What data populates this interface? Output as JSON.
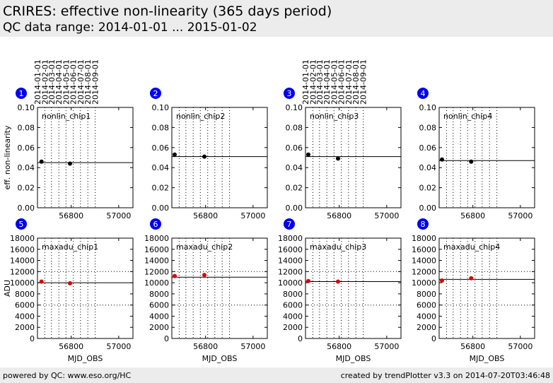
{
  "header": {
    "title": "CRIRES: effective non-linearity (365 days period)",
    "subtitle": "QC data range: 2014-01-01 ... 2015-01-02"
  },
  "footer": {
    "left": "powered by QC: www.eso.org/HC",
    "right": "created by trendPlotter v3.3 on 2014-07-20T03:46:48"
  },
  "date_labels": [
    "2014-01-01",
    "2014-02-01",
    "2014-03-01",
    "2014-04-01",
    "2014-05-01",
    "2014-06-01",
    "2014-07-01",
    "2014-08-01",
    "2014-09-01"
  ],
  "date_mjd": [
    56658,
    56689,
    56717,
    56748,
    56778,
    56809,
    56839,
    56870,
    56901
  ],
  "colors": {
    "badge": "#0000ee",
    "nonlin_points": "#000000",
    "maxadu_points": "#dd0000",
    "line": "#000000"
  },
  "chart_data": [
    {
      "type": "scatter",
      "panel_no": "1",
      "label": "nonlin_chip1",
      "ylabel": "eff. non-linearity",
      "xlabel": "",
      "xlim": [
        56658,
        57060
      ],
      "ylim": [
        0,
        0.1
      ],
      "yticks": [
        "0.00",
        "0.02",
        "0.04",
        "0.06",
        "0.08",
        "0.10"
      ],
      "xticks": [
        "56800",
        "57000"
      ],
      "points": [
        {
          "x": 56675,
          "y": 0.046
        },
        {
          "x": 56795,
          "y": 0.044
        }
      ],
      "ref_line": 0.045,
      "hlines": []
    },
    {
      "type": "scatter",
      "panel_no": "2",
      "label": "nonlin_chip2",
      "ylabel": "",
      "xlabel": "",
      "xlim": [
        56658,
        57060
      ],
      "ylim": [
        0,
        0.1
      ],
      "yticks": [
        "0.00",
        "0.02",
        "0.04",
        "0.06",
        "0.08",
        "0.10"
      ],
      "xticks": [
        "56800",
        "57000"
      ],
      "points": [
        {
          "x": 56670,
          "y": 0.053
        },
        {
          "x": 56795,
          "y": 0.051
        }
      ],
      "ref_line": 0.051,
      "hlines": []
    },
    {
      "type": "scatter",
      "panel_no": "3",
      "label": "nonlin_chip3",
      "ylabel": "",
      "xlabel": "",
      "xlim": [
        56658,
        57060
      ],
      "ylim": [
        0,
        0.1
      ],
      "yticks": [
        "0.00",
        "0.02",
        "0.04",
        "0.06",
        "0.08",
        "0.10"
      ],
      "xticks": [
        "56800",
        "57000"
      ],
      "points": [
        {
          "x": 56670,
          "y": 0.053
        },
        {
          "x": 56795,
          "y": 0.049
        }
      ],
      "ref_line": 0.051,
      "hlines": []
    },
    {
      "type": "scatter",
      "panel_no": "4",
      "label": "nonlin_chip4",
      "ylabel": "",
      "xlabel": "",
      "xlim": [
        56658,
        57060
      ],
      "ylim": [
        0,
        0.1
      ],
      "yticks": [
        "0.00",
        "0.02",
        "0.04",
        "0.06",
        "0.08",
        "0.10"
      ],
      "xticks": [
        "56800",
        "57000"
      ],
      "points": [
        {
          "x": 56670,
          "y": 0.048
        },
        {
          "x": 56793,
          "y": 0.046
        }
      ],
      "ref_line": 0.047,
      "hlines": []
    },
    {
      "type": "scatter",
      "panel_no": "5",
      "label": "maxadu_chip1",
      "ylabel": "ADU",
      "xlabel": "MJD_OBS",
      "xlim": [
        56658,
        57060
      ],
      "ylim": [
        0,
        18000
      ],
      "yticks": [
        "0",
        "2000",
        "4000",
        "6000",
        "8000",
        "10000",
        "12000",
        "14000",
        "16000",
        "18000"
      ],
      "xticks": [
        "56800",
        "57000"
      ],
      "points": [
        {
          "x": 56675,
          "y": 10200
        },
        {
          "x": 56795,
          "y": 9900
        }
      ],
      "ref_line": 10000,
      "hlines": [
        6000,
        12000
      ]
    },
    {
      "type": "scatter",
      "panel_no": "6",
      "label": "maxadu_chip2",
      "ylabel": "",
      "xlabel": "MJD_OBS",
      "xlim": [
        56658,
        57060
      ],
      "ylim": [
        0,
        18000
      ],
      "yticks": [
        "0",
        "2000",
        "4000",
        "6000",
        "8000",
        "10000",
        "12000",
        "14000",
        "16000",
        "18000"
      ],
      "xticks": [
        "56800",
        "57000"
      ],
      "points": [
        {
          "x": 56670,
          "y": 11200
        },
        {
          "x": 56795,
          "y": 11400
        }
      ],
      "ref_line": 11000,
      "hlines": [
        6000,
        12000
      ]
    },
    {
      "type": "scatter",
      "panel_no": "7",
      "label": "maxadu_chip3",
      "ylabel": "",
      "xlabel": "MJD_OBS",
      "xlim": [
        56658,
        57060
      ],
      "ylim": [
        0,
        18000
      ],
      "yticks": [
        "0",
        "2000",
        "4000",
        "6000",
        "8000",
        "10000",
        "12000",
        "14000",
        "16000",
        "18000"
      ],
      "xticks": [
        "56800",
        "57000"
      ],
      "points": [
        {
          "x": 56670,
          "y": 10300
        },
        {
          "x": 56795,
          "y": 10200
        }
      ],
      "ref_line": 10200,
      "hlines": [
        6000,
        12000
      ]
    },
    {
      "type": "scatter",
      "panel_no": "8",
      "label": "maxadu_chip4",
      "ylabel": "",
      "xlabel": "MJD_OBS",
      "xlim": [
        56658,
        57060
      ],
      "ylim": [
        0,
        18000
      ],
      "yticks": [
        "0",
        "2000",
        "4000",
        "6000",
        "8000",
        "10000",
        "12000",
        "14000",
        "16000",
        "18000"
      ],
      "xticks": [
        "56800",
        "57000"
      ],
      "points": [
        {
          "x": 56670,
          "y": 10400
        },
        {
          "x": 56793,
          "y": 10800
        }
      ],
      "ref_line": 10600,
      "hlines": [
        6000,
        12000
      ]
    }
  ]
}
